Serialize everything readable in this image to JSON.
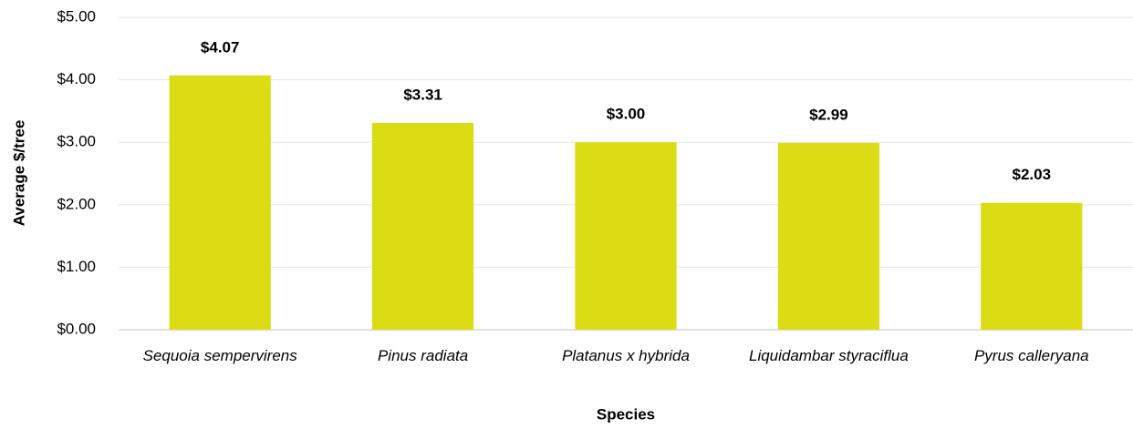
{
  "chart_data": {
    "type": "bar",
    "y_label": "Average $/tree",
    "x_label": "Species",
    "categories": [
      "Sequoia sempervirens",
      "Pinus radiata",
      "Platanus x hybrida",
      "Liquidambar styraciflua",
      "Pyrus calleryana"
    ],
    "values": [
      4.07,
      3.31,
      3.0,
      2.99,
      2.03
    ],
    "value_labels": [
      "$4.07",
      "$3.31",
      "$3.00",
      "$2.99",
      "$2.03"
    ],
    "color": "#dbdc14",
    "ylim": [
      0,
      5
    ],
    "yticks": [
      {
        "value": 0,
        "label": "$0.00"
      },
      {
        "value": 1,
        "label": "$1.00"
      },
      {
        "value": 2,
        "label": "$2.00"
      },
      {
        "value": 3,
        "label": "$3.00"
      },
      {
        "value": 4,
        "label": "$4.00"
      },
      {
        "value": 5,
        "label": "$5.00"
      }
    ],
    "grid": true
  }
}
